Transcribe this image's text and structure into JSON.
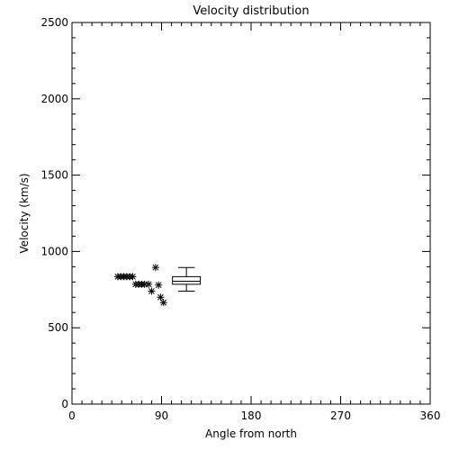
{
  "chart_data": {
    "type": "scatter",
    "title": "Velocity distribution",
    "xlabel": "Angle from north",
    "ylabel": "Velocity (km/s)",
    "xlim": [
      0,
      360
    ],
    "ylim": [
      0,
      2500
    ],
    "x_ticks": [
      0,
      90,
      180,
      270,
      360
    ],
    "x_tick_labels": [
      "0",
      "90",
      "180",
      "270",
      "360"
    ],
    "y_ticks": [
      0,
      500,
      1000,
      1500,
      2000,
      2500
    ],
    "y_tick_labels": [
      "0",
      "500",
      "1000",
      "1500",
      "2000",
      "2500"
    ],
    "x_minor_step": 10,
    "y_minor_step": 100,
    "grid": false,
    "marker": "asterisk",
    "color": "#000000",
    "points": [
      {
        "x": 46,
        "y": 835
      },
      {
        "x": 49,
        "y": 835
      },
      {
        "x": 52,
        "y": 835
      },
      {
        "x": 55,
        "y": 835
      },
      {
        "x": 58,
        "y": 835
      },
      {
        "x": 61,
        "y": 835
      },
      {
        "x": 64,
        "y": 785
      },
      {
        "x": 67,
        "y": 785
      },
      {
        "x": 70,
        "y": 785
      },
      {
        "x": 73,
        "y": 785
      },
      {
        "x": 77,
        "y": 785
      },
      {
        "x": 80,
        "y": 740
      },
      {
        "x": 84,
        "y": 895
      },
      {
        "x": 87,
        "y": 780
      },
      {
        "x": 89,
        "y": 700
      },
      {
        "x": 92,
        "y": 665
      }
    ],
    "boxplot": {
      "x_center": 115,
      "x_halfwidth": 14,
      "min": 740,
      "q1": 785,
      "median": 805,
      "q3": 835,
      "max": 895
    }
  }
}
